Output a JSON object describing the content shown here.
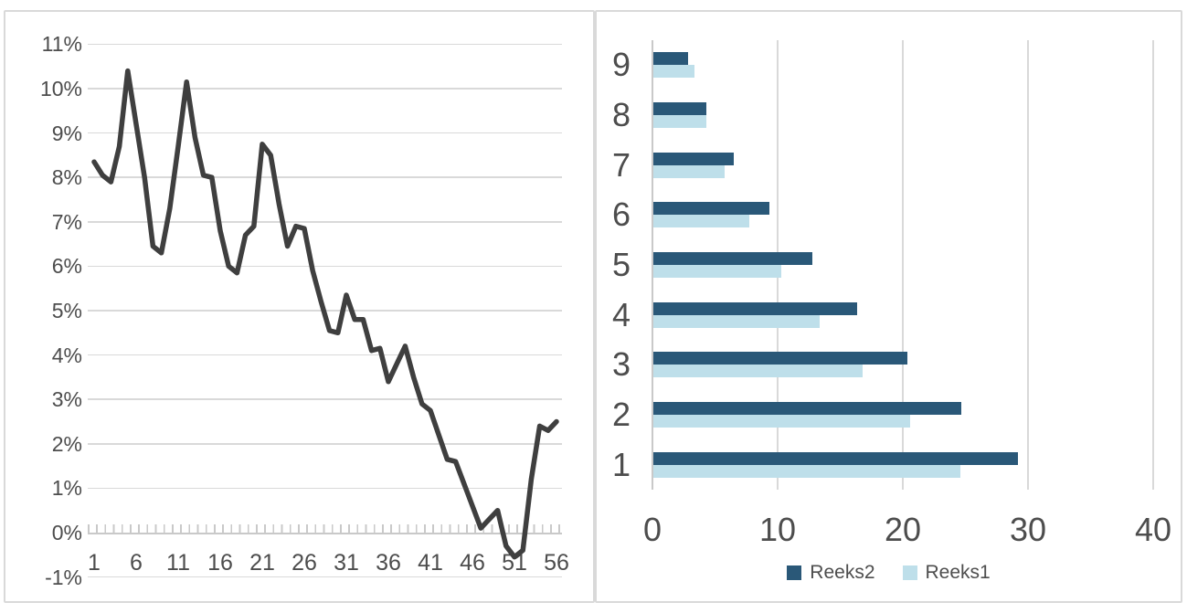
{
  "colors": {
    "background": "#FFFFFF",
    "panel_border": "#D9D9D9",
    "gridline": "#D9D9D9",
    "axis_line": "#C9C9C9",
    "axis_label": "#4D4D4D",
    "line_series": "#3F3F3F",
    "bar_dark": "#2A5878",
    "bar_light": "#BEDFEA"
  },
  "chart_data": [
    {
      "type": "line",
      "title": "",
      "xlabel": "",
      "ylabel": "",
      "x_start": 1,
      "x_step": 1,
      "x_count": 56,
      "x_tick_labels": [
        "1",
        "6",
        "11",
        "16",
        "21",
        "26",
        "31",
        "36",
        "41",
        "46",
        "51",
        "56"
      ],
      "x_tick_values": [
        1,
        6,
        11,
        16,
        21,
        26,
        31,
        36,
        41,
        46,
        51,
        56
      ],
      "y_tick_values": [
        11,
        10,
        9,
        8,
        7,
        6,
        5,
        4,
        3,
        2,
        1,
        0,
        -1
      ],
      "y_tick_suffix": "%",
      "ylim": [
        -1,
        11
      ],
      "grid": "horizontal",
      "axis_cross_y": 0,
      "legend_position": "none",
      "series": [
        {
          "name": "",
          "color": "#3F3F3F",
          "values": [
            8.35,
            8.05,
            7.9,
            8.7,
            10.4,
            9.2,
            8.0,
            6.45,
            6.3,
            7.3,
            8.7,
            10.15,
            8.9,
            8.05,
            8.0,
            6.8,
            6.0,
            5.85,
            6.7,
            6.9,
            8.75,
            8.5,
            7.4,
            6.45,
            6.9,
            6.85,
            5.9,
            5.2,
            4.55,
            4.5,
            5.35,
            4.8,
            4.8,
            4.1,
            4.15,
            3.4,
            3.8,
            4.2,
            3.5,
            2.9,
            2.75,
            2.2,
            1.65,
            1.6,
            1.1,
            0.6,
            0.1,
            0.3,
            0.5,
            -0.3,
            -0.55,
            -0.4,
            1.2,
            2.4,
            2.3,
            2.5
          ]
        }
      ]
    },
    {
      "type": "bar",
      "orientation": "horizontal",
      "title": "",
      "categories": [
        "1",
        "2",
        "3",
        "4",
        "5",
        "6",
        "7",
        "8",
        "9"
      ],
      "category_order": "1-at-bottom",
      "xlim": [
        0,
        40
      ],
      "x_tick_labels": [
        "0",
        "10",
        "20",
        "30",
        "40"
      ],
      "x_tick_values": [
        0,
        10,
        20,
        30,
        40
      ],
      "grid": "vertical",
      "legend_position": "bottom",
      "series": [
        {
          "name": "Reeks2",
          "color": "#2A5878",
          "values": [
            29.1,
            24.6,
            20.3,
            16.3,
            12.7,
            9.3,
            6.4,
            4.2,
            2.8
          ]
        },
        {
          "name": "Reeks1",
          "color": "#BEDFEA",
          "values": [
            24.5,
            20.5,
            16.7,
            13.3,
            10.2,
            7.7,
            5.7,
            4.2,
            3.3
          ]
        }
      ]
    }
  ]
}
